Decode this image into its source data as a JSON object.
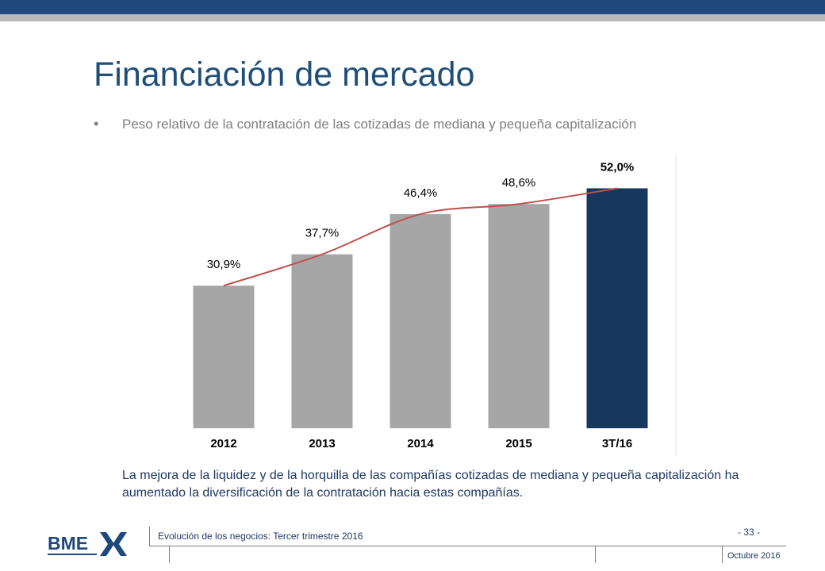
{
  "slide": {
    "title": "Financiación de mercado",
    "bullet": "Peso relativo de la contratación de las cotizadas de mediana y pequeña capitalización",
    "caption": "La mejora de la liquidez y de la horquilla de las compañías cotizadas de mediana y pequeña capitalización ha aumentado la diversificación de la contratación hacia estas compañías."
  },
  "footer": {
    "logo_text": "BME",
    "document": "Evolución de los negocios: Tercer trimestre 2016",
    "page": "- 33 -",
    "date": "Octubre 2016"
  },
  "colors": {
    "header_bar": "#1f497d",
    "bar_gray": "#a6a6a6",
    "bar_highlight": "#17375e",
    "trend_line": "#c0504d"
  },
  "chart_data": {
    "type": "bar",
    "categories": [
      "2012",
      "2013",
      "2014",
      "2015",
      "3T/16"
    ],
    "values": [
      30.9,
      37.7,
      46.4,
      48.6,
      52.0
    ],
    "labels": [
      "30,9%",
      "37,7%",
      "46,4%",
      "48,6%",
      "52,0%"
    ],
    "highlight_index": 4,
    "overlay_line": true,
    "ylim": [
      0,
      55
    ],
    "grid": false,
    "title": "",
    "xlabel": "",
    "ylabel": ""
  }
}
